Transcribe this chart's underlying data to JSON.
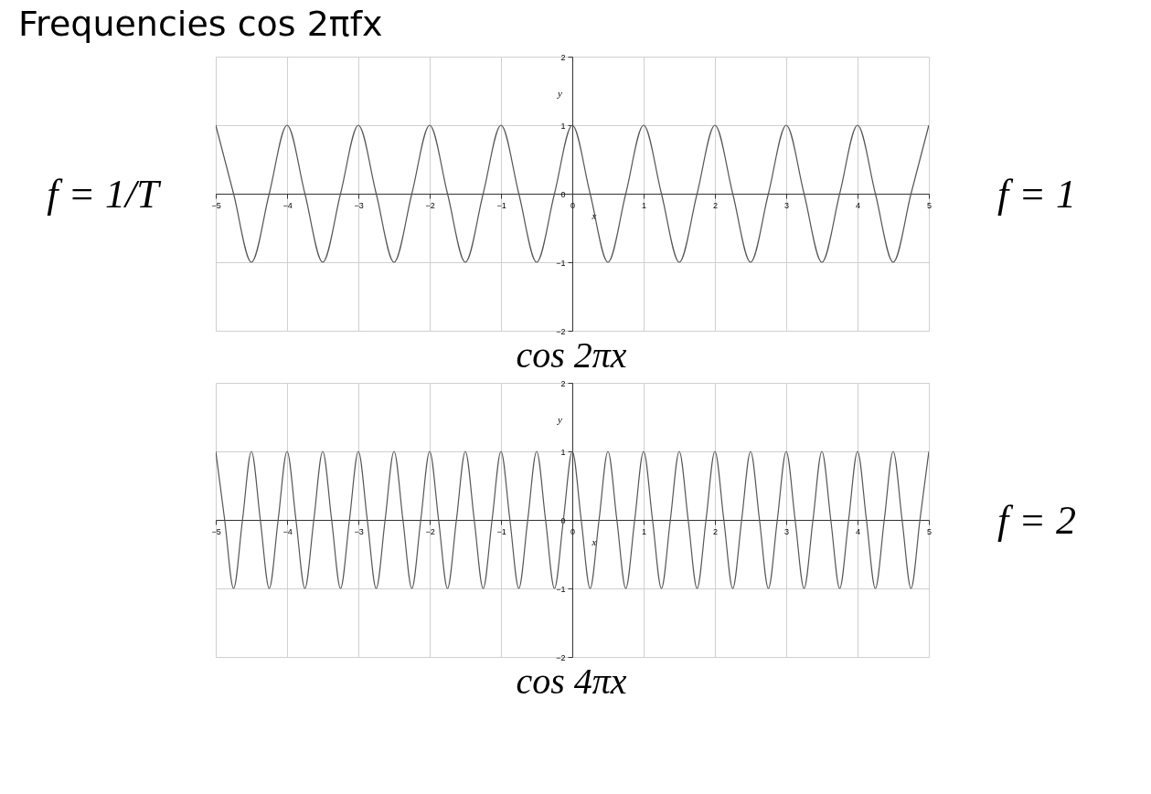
{
  "chart_data": [
    {
      "type": "line",
      "title": "Frequencies  cos 2πfx",
      "xlabel": "x",
      "ylabel": "y",
      "annotations": [
        "f = 1/T",
        "f = 1",
        "cos 2πx"
      ],
      "xlim": [
        -5,
        5
      ],
      "ylim": [
        -2,
        2
      ],
      "xticks": [
        -5,
        -4,
        -3,
        -2,
        -1,
        0,
        1,
        2,
        3,
        4,
        5
      ],
      "yticks": [
        -2,
        -1,
        0,
        1,
        2
      ],
      "grid": true,
      "x": [
        -5,
        -4.75,
        -4.5,
        -4.25,
        -4,
        -3.75,
        -3.5,
        -3.25,
        -3,
        -2.75,
        -2.5,
        -2.25,
        -2,
        -1.75,
        -1.5,
        -1.25,
        -1,
        -0.75,
        -0.5,
        -0.25,
        0,
        0.25,
        0.5,
        0.75,
        1,
        1.25,
        1.5,
        1.75,
        2,
        2.25,
        2.5,
        2.75,
        3,
        3.25,
        3.5,
        3.75,
        4,
        4.25,
        4.5,
        4.75,
        5
      ],
      "series": [
        {
          "color": "#555555",
          "values": [
            1,
            0,
            -1,
            0,
            1,
            0,
            -1,
            0,
            1,
            0,
            -1,
            0,
            1,
            0,
            -1,
            0,
            1,
            0,
            -1,
            0,
            1,
            0,
            -1,
            0,
            1,
            0,
            -1,
            0,
            1,
            0,
            -1,
            0,
            1,
            0,
            -1,
            0,
            1,
            0,
            -1,
            0,
            1
          ]
        }
      ]
    },
    {
      "type": "line",
      "xlabel": "x",
      "ylabel": "y",
      "annotations": [
        "f = 2",
        "cos 4πx"
      ],
      "xlim": [
        -5,
        5
      ],
      "ylim": [
        -2,
        2
      ],
      "xticks": [
        -5,
        -4,
        -3,
        -2,
        -1,
        0,
        1,
        2,
        3,
        4,
        5
      ],
      "yticks": [
        -2,
        -1,
        0,
        1,
        2
      ],
      "grid": true,
      "x": [
        -5,
        -4.875,
        -4.75,
        -4.625,
        -4.5,
        -4.375,
        -4.25,
        -4.125,
        -4,
        -3.875,
        -3.75,
        -3.625,
        -3.5,
        -3.375,
        -3.25,
        -3.125,
        -3,
        -2.875,
        -2.75,
        -2.625,
        -2.5,
        -2.375,
        -2.25,
        -2.125,
        -2,
        -1.875,
        -1.75,
        -1.625,
        -1.5,
        -1.375,
        -1.25,
        -1.125,
        -1,
        -0.875,
        -0.75,
        -0.625,
        -0.5,
        -0.375,
        -0.25,
        -0.125,
        0,
        0.125,
        0.25,
        0.375,
        0.5,
        0.625,
        0.75,
        0.875,
        1,
        1.125,
        1.25,
        1.375,
        1.5,
        1.625,
        1.75,
        1.875,
        2,
        2.125,
        2.25,
        2.375,
        2.5,
        2.625,
        2.75,
        2.875,
        3,
        3.125,
        3.25,
        3.375,
        3.5,
        3.625,
        3.75,
        3.875,
        4,
        4.125,
        4.25,
        4.375,
        4.5,
        4.625,
        4.75,
        4.875,
        5
      ],
      "series": [
        {
          "color": "#555555",
          "values": [
            1,
            0,
            -1,
            0,
            1,
            0,
            -1,
            0,
            1,
            0,
            -1,
            0,
            1,
            0,
            -1,
            0,
            1,
            0,
            -1,
            0,
            1,
            0,
            -1,
            0,
            1,
            0,
            -1,
            0,
            1,
            0,
            -1,
            0,
            1,
            0,
            -1,
            0,
            1,
            0,
            -1,
            0,
            1,
            0,
            -1,
            0,
            1,
            0,
            -1,
            0,
            1,
            0,
            -1,
            0,
            1,
            0,
            -1,
            0,
            1,
            0,
            -1,
            0,
            1,
            0,
            -1,
            0,
            1,
            0,
            -1,
            0,
            1,
            0,
            -1,
            0,
            1,
            0,
            -1,
            0,
            1,
            0,
            -1,
            0,
            1
          ]
        }
      ]
    }
  ]
}
